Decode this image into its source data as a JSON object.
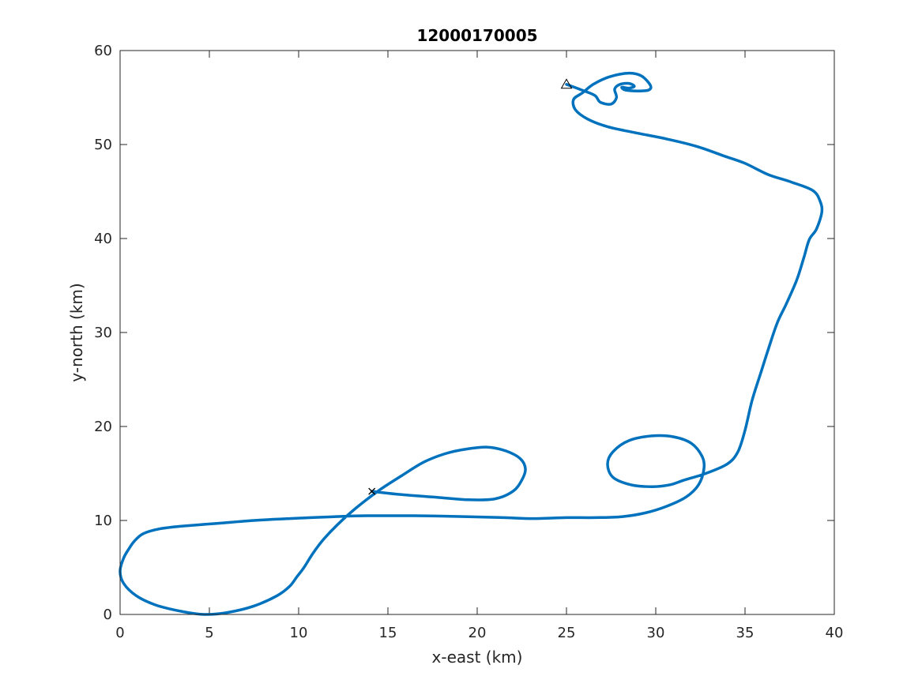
{
  "chart_data": {
    "type": "line",
    "title": "12000170005",
    "xlabel": "x-east (km)",
    "ylabel": "y-north (km)",
    "xlim": [
      0,
      40
    ],
    "ylim": [
      0,
      60
    ],
    "xticks": [
      0,
      5,
      10,
      15,
      20,
      25,
      30,
      35,
      40
    ],
    "yticks": [
      0,
      10,
      20,
      30,
      40,
      50,
      60
    ],
    "grid": false,
    "line_color": "#0072bd",
    "marker_color": "#000000",
    "start_marker": {
      "symbol": "triangle",
      "x": 25.0,
      "y": 56.4
    },
    "end_marker": {
      "symbol": "x",
      "x": 14.1,
      "y": 13.1
    },
    "series": [
      {
        "points": [
          [
            25.0,
            56.4
          ],
          [
            26.0,
            55.7
          ],
          [
            26.6,
            55.2
          ],
          [
            26.9,
            54.5
          ],
          [
            27.5,
            54.3
          ],
          [
            27.8,
            55.0
          ],
          [
            27.7,
            55.9
          ],
          [
            28.0,
            56.4
          ],
          [
            28.5,
            56.5
          ],
          [
            28.8,
            56.2
          ],
          [
            28.5,
            56.0
          ],
          [
            28.1,
            56.1
          ],
          [
            28.3,
            55.8
          ],
          [
            29.0,
            55.7
          ],
          [
            29.6,
            55.8
          ],
          [
            29.7,
            56.3
          ],
          [
            29.2,
            57.3
          ],
          [
            28.5,
            57.6
          ],
          [
            27.4,
            57.2
          ],
          [
            26.5,
            56.4
          ],
          [
            25.9,
            55.5
          ],
          [
            25.4,
            54.8
          ],
          [
            25.5,
            53.7
          ],
          [
            26.2,
            52.7
          ],
          [
            27.3,
            51.9
          ],
          [
            29.0,
            51.2
          ],
          [
            30.6,
            50.6
          ],
          [
            32.3,
            49.8
          ],
          [
            33.8,
            48.8
          ],
          [
            35.0,
            48.0
          ],
          [
            36.3,
            46.8
          ],
          [
            37.6,
            46.0
          ],
          [
            38.8,
            45.1
          ],
          [
            39.2,
            44.0
          ],
          [
            39.3,
            42.8
          ],
          [
            39.0,
            41.0
          ],
          [
            38.6,
            39.9
          ],
          [
            38.3,
            38.0
          ],
          [
            37.9,
            35.6
          ],
          [
            37.3,
            33.0
          ],
          [
            36.8,
            31.0
          ],
          [
            36.3,
            28.2
          ],
          [
            35.9,
            25.8
          ],
          [
            35.4,
            22.8
          ],
          [
            35.0,
            19.6
          ],
          [
            34.6,
            17.3
          ],
          [
            34.0,
            16.0
          ],
          [
            32.8,
            15.0
          ],
          [
            31.6,
            14.3
          ],
          [
            30.8,
            13.8
          ],
          [
            29.8,
            13.6
          ],
          [
            28.6,
            13.8
          ],
          [
            27.6,
            14.6
          ],
          [
            27.3,
            16.0
          ],
          [
            27.6,
            17.3
          ],
          [
            28.5,
            18.5
          ],
          [
            29.8,
            19.0
          ],
          [
            31.0,
            18.9
          ],
          [
            32.0,
            18.2
          ],
          [
            32.6,
            16.8
          ],
          [
            32.7,
            15.5
          ],
          [
            32.4,
            13.8
          ],
          [
            31.7,
            12.5
          ],
          [
            30.6,
            11.5
          ],
          [
            29.4,
            10.8
          ],
          [
            28.1,
            10.4
          ],
          [
            26.6,
            10.3
          ],
          [
            25.0,
            10.3
          ],
          [
            23.1,
            10.2
          ],
          [
            21.5,
            10.3
          ],
          [
            19.5,
            10.4
          ],
          [
            16.5,
            10.5
          ],
          [
            13.8,
            10.5
          ],
          [
            12.0,
            10.4
          ],
          [
            9.5,
            10.2
          ],
          [
            7.5,
            10.0
          ],
          [
            5.5,
            9.7
          ],
          [
            3.5,
            9.4
          ],
          [
            2.2,
            9.1
          ],
          [
            1.3,
            8.6
          ],
          [
            0.8,
            7.8
          ],
          [
            0.5,
            7.0
          ],
          [
            0.2,
            6.0
          ],
          [
            0.0,
            4.6
          ],
          [
            0.2,
            3.3
          ],
          [
            0.9,
            2.0
          ],
          [
            2.0,
            1.0
          ],
          [
            3.5,
            0.3
          ],
          [
            4.7,
            0.0
          ],
          [
            6.0,
            0.2
          ],
          [
            7.5,
            0.9
          ],
          [
            8.8,
            2.0
          ],
          [
            9.5,
            3.0
          ],
          [
            9.9,
            4.0
          ],
          [
            10.3,
            5.0
          ],
          [
            10.8,
            6.5
          ],
          [
            11.4,
            8.0
          ],
          [
            12.2,
            9.6
          ],
          [
            13.2,
            11.3
          ],
          [
            14.5,
            13.2
          ],
          [
            15.8,
            14.8
          ],
          [
            17.0,
            16.2
          ],
          [
            18.2,
            17.1
          ],
          [
            19.4,
            17.6
          ],
          [
            20.6,
            17.8
          ],
          [
            21.6,
            17.4
          ],
          [
            22.4,
            16.6
          ],
          [
            22.7,
            15.5
          ],
          [
            22.5,
            14.3
          ],
          [
            22.0,
            13.1
          ],
          [
            21.0,
            12.3
          ],
          [
            19.5,
            12.2
          ],
          [
            17.5,
            12.5
          ],
          [
            15.5,
            12.8
          ],
          [
            14.1,
            13.1
          ]
        ]
      }
    ]
  }
}
